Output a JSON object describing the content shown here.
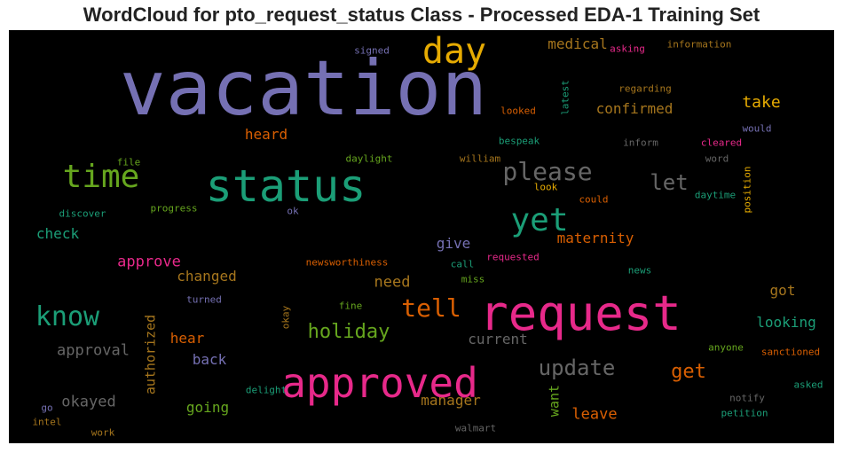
{
  "chart_data": {
    "type": "wordcloud",
    "title": "WordCloud for pto_request_status Class - Processed EDA-1 Training Set",
    "background": "#000000",
    "words": [
      {
        "text": "vacation",
        "color": "#7570b3"
      },
      {
        "text": "status",
        "color": "#1b9e77"
      },
      {
        "text": "request",
        "color": "#e7298a"
      },
      {
        "text": "approved",
        "color": "#e7298a"
      },
      {
        "text": "day",
        "color": "#e6ab02"
      },
      {
        "text": "time",
        "color": "#66a61e"
      },
      {
        "text": "yet",
        "color": "#1b9e77"
      },
      {
        "text": "please",
        "color": "#666666"
      },
      {
        "text": "know",
        "color": "#1b9e77"
      },
      {
        "text": "tell",
        "color": "#d95f02"
      },
      {
        "text": "update",
        "color": "#666666"
      },
      {
        "text": "holiday",
        "color": "#66a61e"
      },
      {
        "text": "let",
        "color": "#666666"
      },
      {
        "text": "get",
        "color": "#d95f02"
      },
      {
        "text": "medical",
        "color": "#a6761d"
      },
      {
        "text": "confirmed",
        "color": "#a6761d"
      },
      {
        "text": "take",
        "color": "#e6ab02"
      },
      {
        "text": "heard",
        "color": "#d95f02"
      },
      {
        "text": "maternity",
        "color": "#d95f02"
      },
      {
        "text": "give",
        "color": "#7570b3"
      },
      {
        "text": "approve",
        "color": "#e7298a"
      },
      {
        "text": "check",
        "color": "#1b9e77"
      },
      {
        "text": "changed",
        "color": "#a6761d"
      },
      {
        "text": "need",
        "color": "#a6761d"
      },
      {
        "text": "approval",
        "color": "#666666"
      },
      {
        "text": "hear",
        "color": "#d95f02"
      },
      {
        "text": "back",
        "color": "#7570b3"
      },
      {
        "text": "current",
        "color": "#666666"
      },
      {
        "text": "okayed",
        "color": "#666666"
      },
      {
        "text": "going",
        "color": "#66a61e"
      },
      {
        "text": "manager",
        "color": "#a6761d"
      },
      {
        "text": "leave",
        "color": "#d95f02"
      },
      {
        "text": "want",
        "color": "#66a61e"
      },
      {
        "text": "looking",
        "color": "#1b9e77"
      },
      {
        "text": "got",
        "color": "#a6761d"
      },
      {
        "text": "authorized",
        "color": "#a6761d"
      },
      {
        "text": "signed",
        "color": "#7570b3"
      },
      {
        "text": "asking",
        "color": "#e7298a"
      },
      {
        "text": "information",
        "color": "#a6761d"
      },
      {
        "text": "regarding",
        "color": "#a6761d"
      },
      {
        "text": "latest",
        "color": "#1b9e77"
      },
      {
        "text": "looked",
        "color": "#d95f02"
      },
      {
        "text": "bespeak",
        "color": "#1b9e77"
      },
      {
        "text": "inform",
        "color": "#666666"
      },
      {
        "text": "cleared",
        "color": "#e7298a"
      },
      {
        "text": "would",
        "color": "#7570b3"
      },
      {
        "text": "word",
        "color": "#666666"
      },
      {
        "text": "position",
        "color": "#e6ab02"
      },
      {
        "text": "daylight",
        "color": "#66a61e"
      },
      {
        "text": "william",
        "color": "#a6761d"
      },
      {
        "text": "file",
        "color": "#66a61e"
      },
      {
        "text": "look",
        "color": "#e6ab02"
      },
      {
        "text": "could",
        "color": "#d95f02"
      },
      {
        "text": "daytime",
        "color": "#1b9e77"
      },
      {
        "text": "discover",
        "color": "#1b9e77"
      },
      {
        "text": "progress",
        "color": "#66a61e"
      },
      {
        "text": "ok",
        "color": "#7570b3"
      },
      {
        "text": "newsworthiness",
        "color": "#d95f02"
      },
      {
        "text": "requested",
        "color": "#e7298a"
      },
      {
        "text": "call",
        "color": "#1b9e77"
      },
      {
        "text": "miss",
        "color": "#66a61e"
      },
      {
        "text": "news",
        "color": "#1b9e77"
      },
      {
        "text": "turned",
        "color": "#7570b3"
      },
      {
        "text": "fine",
        "color": "#66a61e"
      },
      {
        "text": "okay",
        "color": "#a6761d"
      },
      {
        "text": "anyone",
        "color": "#66a61e"
      },
      {
        "text": "sanctioned",
        "color": "#d95f02"
      },
      {
        "text": "delight",
        "color": "#1b9e77"
      },
      {
        "text": "notify",
        "color": "#666666"
      },
      {
        "text": "asked",
        "color": "#1b9e77"
      },
      {
        "text": "petition",
        "color": "#1b9e77"
      },
      {
        "text": "go",
        "color": "#7570b3"
      },
      {
        "text": "intel",
        "color": "#a6761d"
      },
      {
        "text": "work",
        "color": "#a6761d"
      },
      {
        "text": "walmart",
        "color": "#666666"
      }
    ]
  }
}
